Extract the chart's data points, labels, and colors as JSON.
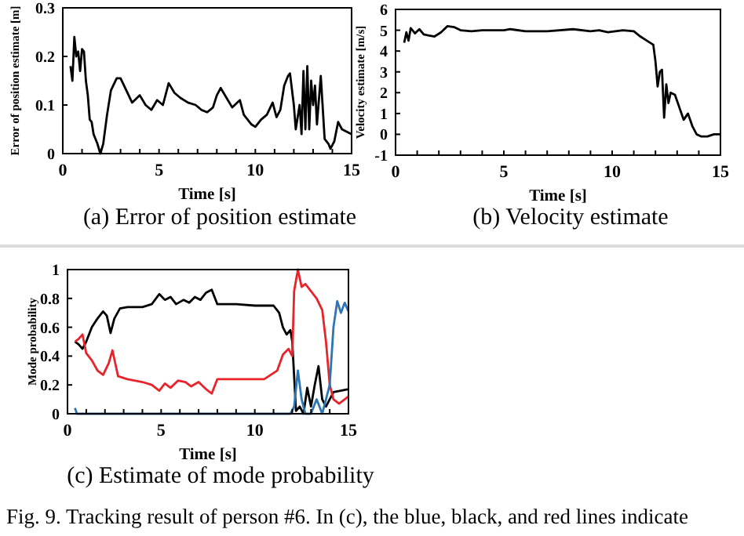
{
  "chart_data": [
    {
      "type": "line",
      "title": "(a) Error of position estimate",
      "xlabel": "Time [s]",
      "ylabel": "Error of position estimate [m]",
      "xlim": [
        0,
        15
      ],
      "ylim": [
        0,
        0.3
      ],
      "xticks": [
        0,
        {
          "value": 1,
          "label": null
        },
        {
          "value": 2,
          "label": null
        },
        {
          "value": 3,
          "label": null
        },
        {
          "value": 4,
          "label": null
        },
        5,
        {
          "value": 6,
          "label": null
        },
        {
          "value": 7,
          "label": null
        },
        {
          "value": 8,
          "label": null
        },
        {
          "value": 9,
          "label": null
        },
        10,
        {
          "value": 11,
          "label": null
        },
        {
          "value": 12,
          "label": null
        },
        {
          "value": 13,
          "label": null
        },
        {
          "value": 14,
          "label": null
        },
        15
      ],
      "yticks": [
        0,
        0.1,
        0.2,
        0.3
      ],
      "grid": false,
      "series": [
        {
          "color": "#000000",
          "x": [
            0.4,
            0.5,
            0.6,
            0.7,
            0.8,
            0.9,
            1.0,
            1.1,
            1.2,
            1.3,
            1.4,
            1.5,
            1.6,
            1.8,
            1.95,
            2.1,
            2.3,
            2.5,
            2.8,
            3.0,
            3.3,
            3.6,
            4.0,
            4.3,
            4.6,
            4.9,
            5.2,
            5.5,
            5.8,
            6.1,
            6.5,
            6.9,
            7.2,
            7.5,
            7.8,
            8.0,
            8.2,
            8.5,
            8.8,
            9.2,
            9.4,
            9.8,
            10.0,
            10.3,
            10.6,
            10.9,
            11.1,
            11.3,
            11.5,
            11.7,
            11.8,
            12.0,
            12.1,
            12.3,
            12.4,
            12.5,
            12.6,
            12.7,
            12.8,
            12.9,
            13.0,
            13.1,
            13.2,
            13.4,
            13.6,
            13.8,
            13.9,
            14.1,
            14.3,
            14.5,
            15
          ],
          "values": [
            0.18,
            0.15,
            0.24,
            0.2,
            0.21,
            0.17,
            0.215,
            0.21,
            0.15,
            0.12,
            0.07,
            0.065,
            0.04,
            0.02,
            0,
            0.02,
            0.08,
            0.13,
            0.155,
            0.155,
            0.13,
            0.105,
            0.12,
            0.1,
            0.09,
            0.11,
            0.1,
            0.145,
            0.125,
            0.115,
            0.105,
            0.1,
            0.09,
            0.085,
            0.095,
            0.12,
            0.135,
            0.115,
            0.095,
            0.11,
            0.08,
            0.06,
            0.055,
            0.07,
            0.08,
            0.105,
            0.075,
            0.09,
            0.14,
            0.16,
            0.165,
            0.1,
            0.05,
            0.1,
            0.04,
            0.17,
            0.05,
            0.18,
            0.05,
            0.15,
            0.1,
            0.14,
            0.06,
            0.16,
            0.03,
            0.02,
            0.01,
            0.025,
            0.065,
            0.05,
            0.04
          ]
        }
      ]
    },
    {
      "type": "line",
      "title": "(b) Velocity estimate",
      "xlabel": "Time [s]",
      "ylabel": "Velocity estimate [m/s]",
      "xlim": [
        0,
        15
      ],
      "ylim": [
        -1,
        6
      ],
      "xticks": [
        0,
        {
          "value": 1,
          "label": null
        },
        {
          "value": 2,
          "label": null
        },
        {
          "value": 3,
          "label": null
        },
        {
          "value": 4,
          "label": null
        },
        5,
        {
          "value": 6,
          "label": null
        },
        {
          "value": 7,
          "label": null
        },
        {
          "value": 8,
          "label": null
        },
        {
          "value": 9,
          "label": null
        },
        10,
        {
          "value": 11,
          "label": null
        },
        {
          "value": 12,
          "label": null
        },
        {
          "value": 13,
          "label": null
        },
        {
          "value": 14,
          "label": null
        },
        15
      ],
      "yticks": [
        -1,
        0,
        1,
        2,
        3,
        4,
        5,
        6
      ],
      "grid": false,
      "series": [
        {
          "color": "#000000",
          "x": [
            0.4,
            0.5,
            0.6,
            0.7,
            0.9,
            1.1,
            1.3,
            1.5,
            1.8,
            2.1,
            2.4,
            2.7,
            3.0,
            3.5,
            4,
            5,
            5.3,
            6,
            7,
            8.2,
            9,
            9.4,
            9.8,
            10.5,
            11,
            11.3,
            11.6,
            11.9,
            12.0,
            12.1,
            12.2,
            12.3,
            12.4,
            12.5,
            12.6,
            12.7,
            12.9,
            13.1,
            13.3,
            13.5,
            13.7,
            13.9,
            14.1,
            14.4,
            14.7,
            15
          ],
          "values": [
            4.4,
            4.9,
            4.5,
            5.1,
            4.85,
            5.05,
            4.8,
            4.75,
            4.7,
            4.9,
            5.2,
            5.15,
            5.0,
            4.95,
            5.0,
            5.0,
            5.05,
            4.95,
            4.95,
            5.05,
            4.95,
            5.0,
            4.9,
            5.0,
            4.95,
            4.7,
            4.5,
            4.3,
            3.5,
            2.3,
            3.0,
            3.1,
            0.8,
            2.4,
            1.5,
            2.0,
            1.9,
            1.3,
            0.7,
            1.0,
            0.4,
            0.0,
            -0.1,
            -0.1,
            0.0,
            0.0
          ]
        }
      ]
    },
    {
      "type": "line",
      "title": "(c) Estimate of mode probability",
      "xlabel": "Time [s]",
      "ylabel": "Mode probability",
      "xlim": [
        0,
        15
      ],
      "ylim": [
        0,
        1
      ],
      "xticks": [
        0,
        {
          "value": 1,
          "label": null
        },
        {
          "value": 2,
          "label": null
        },
        {
          "value": 3,
          "label": null
        },
        {
          "value": 4,
          "label": null
        },
        5,
        {
          "value": 6,
          "label": null
        },
        {
          "value": 7,
          "label": null
        },
        {
          "value": 8,
          "label": null
        },
        {
          "value": 9,
          "label": null
        },
        10,
        {
          "value": 11,
          "label": null
        },
        {
          "value": 12,
          "label": null
        },
        {
          "value": 13,
          "label": null
        },
        {
          "value": 14,
          "label": null
        },
        15
      ],
      "yticks": [
        0,
        0.2,
        0.4,
        0.6,
        0.8,
        1
      ],
      "grid": false,
      "annotations": [
        "Fig. 9. Tracking result of person #6. In (c), the blue, black, and red lines indicate"
      ],
      "series": [
        {
          "color": "#000000",
          "x": [
            0.4,
            0.6,
            0.8,
            1.0,
            1.3,
            1.6,
            1.9,
            2.1,
            2.3,
            2.5,
            2.8,
            3.2,
            4,
            4.5,
            4.9,
            5.2,
            5.5,
            5.8,
            6.2,
            6.5,
            6.8,
            7.1,
            7.4,
            7.7,
            8.0,
            8.4,
            9,
            10,
            11,
            11.3,
            11.5,
            11.7,
            11.9,
            12.0,
            12.2,
            12.4,
            12.6,
            12.8,
            13.0,
            13.2,
            13.4,
            13.6,
            13.8,
            14.2,
            15
          ],
          "values": [
            0.5,
            0.48,
            0.45,
            0.5,
            0.6,
            0.66,
            0.71,
            0.68,
            0.56,
            0.66,
            0.73,
            0.74,
            0.74,
            0.76,
            0.83,
            0.79,
            0.81,
            0.76,
            0.79,
            0.77,
            0.81,
            0.79,
            0.84,
            0.86,
            0.76,
            0.76,
            0.76,
            0.75,
            0.75,
            0.7,
            0.6,
            0.55,
            0.58,
            0.5,
            0.02,
            0.05,
            0.0,
            0.18,
            0.05,
            0.2,
            0.33,
            0.1,
            0.05,
            0.15,
            0.17
          ]
        },
        {
          "color": "#e8242a",
          "x": [
            0.4,
            0.6,
            0.8,
            1.0,
            1.3,
            1.6,
            1.9,
            2.2,
            2.4,
            2.7,
            3.2,
            4,
            4.5,
            4.9,
            5.2,
            5.5,
            5.9,
            6.3,
            6.6,
            7,
            7.4,
            7.7,
            8.0,
            8.5,
            9.5,
            10.5,
            11.2,
            11.5,
            11.8,
            12.0,
            12.1,
            12.3,
            12.5,
            12.7,
            13.0,
            13.3,
            13.6,
            13.8,
            14.0,
            14.2,
            14.5,
            15
          ],
          "values": [
            0.5,
            0.52,
            0.55,
            0.42,
            0.37,
            0.3,
            0.27,
            0.35,
            0.44,
            0.26,
            0.24,
            0.22,
            0.2,
            0.16,
            0.21,
            0.18,
            0.23,
            0.22,
            0.19,
            0.22,
            0.17,
            0.14,
            0.24,
            0.24,
            0.24,
            0.24,
            0.3,
            0.41,
            0.45,
            0.4,
            0.85,
            1.0,
            0.88,
            0.9,
            0.85,
            0.8,
            0.72,
            0.5,
            0.2,
            0.1,
            0.07,
            0.12
          ]
        },
        {
          "color": "#2e75b6",
          "x": [
            0.4,
            0.5,
            11.9,
            12.1,
            12.3,
            12.5,
            12.7,
            13.0,
            13.3,
            13.6,
            14.0,
            14.2,
            14.4,
            14.6,
            14.8,
            15
          ],
          "values": [
            0.04,
            0.0,
            0.0,
            0.05,
            0.3,
            0.1,
            0.0,
            0.0,
            0.1,
            0.0,
            0.2,
            0.6,
            0.78,
            0.7,
            0.77,
            0.71
          ]
        }
      ]
    }
  ]
}
